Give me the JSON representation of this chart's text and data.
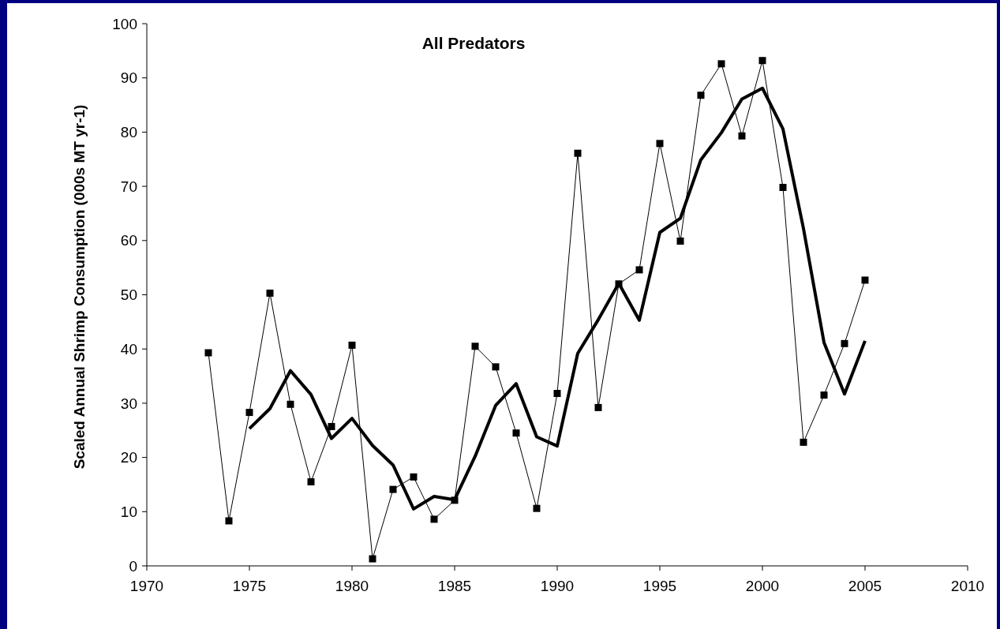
{
  "chart_data": {
    "type": "line",
    "title": "All Predators",
    "ylabel": "Scaled Annual Shrimp Consumption (000s MT yr-1)",
    "xlim": [
      1970,
      2010
    ],
    "xticks": [
      1970,
      1975,
      1980,
      1985,
      1990,
      1995,
      2000,
      2005,
      2010
    ],
    "ylim": [
      0,
      100
    ],
    "yticks": [
      0,
      10,
      20,
      30,
      40,
      50,
      60,
      70,
      80,
      90,
      100
    ],
    "grid": false,
    "series": [
      {
        "color": "#000000",
        "marker": "square",
        "x": [
          1973,
          1974,
          1975,
          1976,
          1977,
          1978,
          1979,
          1980,
          1981,
          1982,
          1983,
          1984,
          1985,
          1986,
          1987,
          1988,
          1989,
          1990,
          1991,
          1992,
          1993,
          1994,
          1995,
          1996,
          1997,
          1998,
          1999,
          2000,
          2001,
          2002,
          2003,
          2004,
          2005
        ],
        "values": [
          39.3,
          8.3,
          28.3,
          50.3,
          29.8,
          15.5,
          25.7,
          40.7,
          1.3,
          14.1,
          16.4,
          8.6,
          12.1,
          40.5,
          36.7,
          24.5,
          10.6,
          31.8,
          76.1,
          29.2,
          52,
          54.6,
          77.9,
          59.9,
          86.8,
          92.6,
          79.3,
          93.2,
          69.8,
          22.8,
          31.5,
          41,
          52.7
        ]
      },
      {
        "color": "#000000",
        "marker": "none",
        "x": [
          1975,
          1976,
          1977,
          1978,
          1979,
          1980,
          1981,
          1982,
          1983,
          1984,
          1985,
          1986,
          1987,
          1988,
          1989,
          1990,
          1991,
          1992,
          1993,
          1994,
          1995,
          1996,
          1997,
          1998,
          1999,
          2000,
          2001,
          2002,
          2003,
          2004,
          2005
        ],
        "values": [
          25.3,
          29,
          36,
          31.6,
          23.5,
          27.2,
          22.2,
          18.6,
          10.5,
          12.8,
          12.2,
          20.2,
          29.6,
          33.6,
          23.8,
          22.1,
          39.2,
          45.4,
          52.1,
          45.3,
          61.5,
          64.1,
          74.9,
          79.9,
          86.1,
          88.1,
          80.6,
          62.2,
          41.2,
          31.7,
          41.5
        ]
      }
    ]
  }
}
